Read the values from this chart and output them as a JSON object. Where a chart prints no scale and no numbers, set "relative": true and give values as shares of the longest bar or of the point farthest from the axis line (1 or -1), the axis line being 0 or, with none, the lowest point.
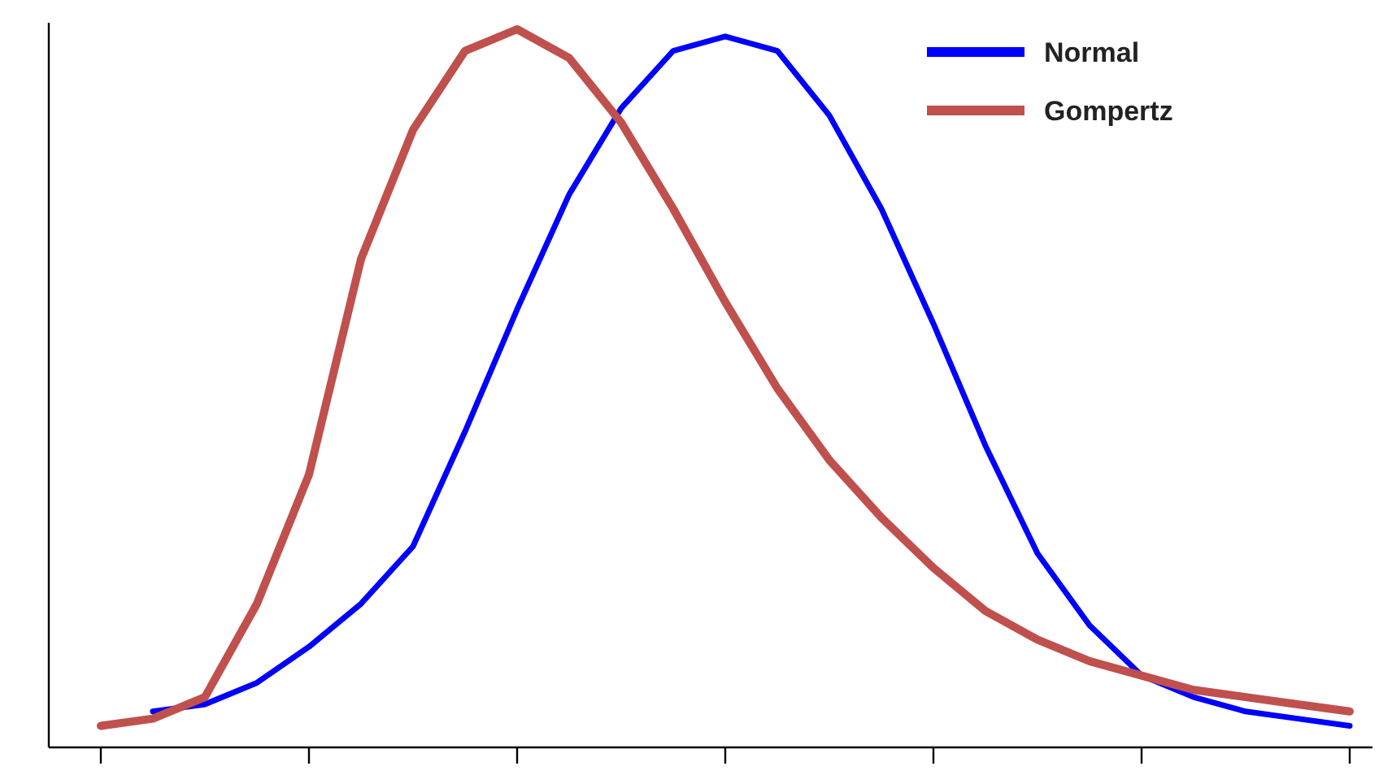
{
  "chart_data": {
    "type": "line",
    "relative": true,
    "legend": "top right",
    "line_style": "solid",
    "marker": "none",
    "categories": [
      null,
      null,
      null,
      null,
      null,
      null,
      null,
      null,
      null,
      null,
      null,
      null,
      null,
      null,
      null,
      null,
      null,
      null,
      null,
      null,
      null,
      null,
      null,
      null,
      null
    ],
    "series": [
      {
        "name": "Normal",
        "color": "#0000ff",
        "values": [
          null,
          0.05,
          0.06,
          0.09,
          0.14,
          0.2,
          0.28,
          0.44,
          0.61,
          0.77,
          0.89,
          0.97,
          0.99,
          0.97,
          0.88,
          0.75,
          0.59,
          0.42,
          0.27,
          0.17,
          0.1,
          0.07,
          0.05,
          0.04,
          0.03
        ]
      },
      {
        "name": "Gompertz",
        "color": "#c0504d",
        "values": [
          0.03,
          0.04,
          0.07,
          0.2,
          0.38,
          0.68,
          0.86,
          0.97,
          1,
          0.96,
          0.87,
          0.75,
          0.62,
          0.5,
          0.4,
          0.32,
          0.25,
          0.19,
          0.15,
          0.12,
          0.1,
          0.08,
          0.07,
          0.06,
          0.05
        ]
      }
    ]
  }
}
